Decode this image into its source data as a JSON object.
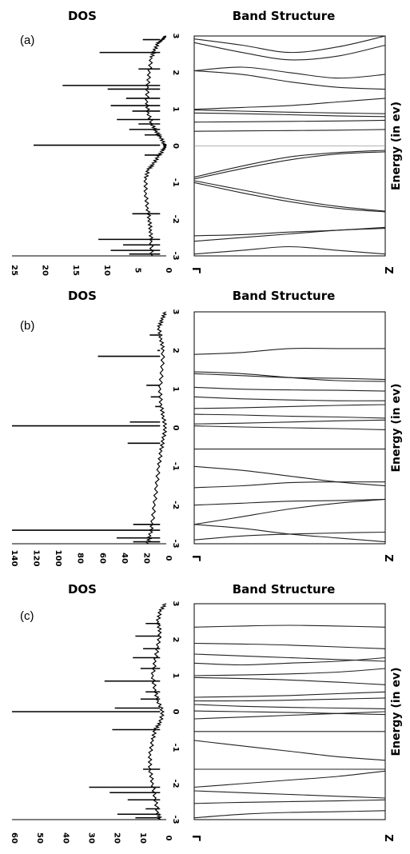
{
  "chart_data": [
    {
      "label": "(a)",
      "dos": {
        "title": "DOS",
        "type": "line",
        "xlim": [
          0,
          25
        ],
        "x_ticks": [
          "25",
          "20",
          "15",
          "10",
          "5",
          "0"
        ],
        "x_tick_values": [
          25,
          20,
          15,
          10,
          5,
          0
        ],
        "ylim": [
          -3,
          3
        ],
        "baseline": [
          [
            0,
            3
          ],
          [
            0.5,
            2.9
          ],
          [
            1.2,
            2.8
          ],
          [
            1.8,
            2.6
          ],
          [
            2.3,
            2.4
          ],
          [
            2.6,
            2.0
          ],
          [
            2.9,
            1.6
          ],
          [
            3.0,
            1.2
          ],
          [
            2.8,
            0.9
          ],
          [
            2.2,
            0.6
          ],
          [
            1.5,
            0.4
          ],
          [
            0.8,
            0.25
          ],
          [
            0.2,
            0.05
          ],
          [
            0,
            0
          ],
          [
            0.4,
            -0.12
          ],
          [
            1.2,
            -0.3
          ],
          [
            2.0,
            -0.5
          ],
          [
            2.8,
            -0.65
          ],
          [
            3.2,
            -0.9
          ],
          [
            3.2,
            -1.3
          ],
          [
            2.9,
            -1.7
          ],
          [
            2.6,
            -2.0
          ],
          [
            2.4,
            -2.3
          ],
          [
            2.3,
            -2.6
          ],
          [
            2.2,
            -3.0
          ]
        ],
        "peaks": [
          [
            2.9,
            3.8
          ],
          [
            2.55,
            10.8
          ],
          [
            2.1,
            4.5
          ],
          [
            1.65,
            16.8
          ],
          [
            1.55,
            9.5
          ],
          [
            1.3,
            6.5
          ],
          [
            1.1,
            9.0
          ],
          [
            0.95,
            5.5
          ],
          [
            0.72,
            8.0
          ],
          [
            0.6,
            4.5
          ],
          [
            0.45,
            6.0
          ],
          [
            0.3,
            3.5
          ],
          [
            0.02,
            21.5
          ],
          [
            -0.25,
            3.5
          ],
          [
            -1.85,
            5.5
          ],
          [
            -2.55,
            11.0
          ],
          [
            -2.7,
            7.0
          ],
          [
            -2.85,
            9.0
          ],
          [
            -2.95,
            6.0
          ]
        ]
      },
      "bands": {
        "title": "Band Structure",
        "ylabel": "Energy (in ev)",
        "y_ticks": [
          "3",
          "2",
          "1",
          "0",
          "-1",
          "-2",
          "-3"
        ],
        "ylim": [
          -3,
          3
        ],
        "k_labels": [
          "Γ",
          "Z"
        ],
        "lines": [
          [
            2.92,
            2.75,
            2.55,
            2.7,
            3.0
          ],
          [
            2.82,
            2.55,
            2.35,
            2.45,
            2.75
          ],
          [
            2.05,
            1.95,
            1.75,
            1.6,
            1.55
          ],
          [
            2.05,
            2.15,
            2.0,
            1.85,
            1.95
          ],
          [
            0.98,
            0.95,
            0.92,
            0.9,
            0.88
          ],
          [
            0.9,
            0.88,
            0.85,
            0.82,
            0.8
          ],
          [
            0.65,
            0.66,
            0.67,
            0.68,
            0.7
          ],
          [
            0.4,
            0.41,
            0.42,
            0.43,
            0.45
          ],
          [
            1.0,
            1.05,
            1.1,
            1.2,
            1.3
          ],
          [
            -0.85,
            -0.55,
            -0.3,
            -0.18,
            -0.12
          ],
          [
            -0.9,
            -0.62,
            -0.38,
            -0.22,
            -0.16
          ],
          [
            -0.95,
            -1.2,
            -1.45,
            -1.65,
            -1.78
          ],
          [
            -1.0,
            -1.28,
            -1.52,
            -1.7,
            -1.8
          ],
          [
            -2.45,
            -2.42,
            -2.35,
            -2.3,
            -2.22
          ],
          [
            -2.6,
            -2.5,
            -2.4,
            -2.3,
            -2.25
          ],
          [
            -2.95,
            -2.85,
            -2.75,
            -2.85,
            -2.95
          ]
        ]
      }
    },
    {
      "label": "(b)",
      "dos": {
        "title": "DOS",
        "type": "line",
        "xlim": [
          0,
          140
        ],
        "x_ticks": [
          "140",
          "120",
          "100",
          "80",
          "60",
          "40",
          "20",
          "0"
        ],
        "x_tick_values": [
          140,
          120,
          100,
          80,
          60,
          40,
          20,
          0
        ],
        "ylim": [
          -3,
          3
        ],
        "baseline": [
          [
            0,
            3
          ],
          [
            3,
            2.8
          ],
          [
            6,
            2.6
          ],
          [
            4,
            2.3
          ],
          [
            2,
            2.0
          ],
          [
            3,
            1.5
          ],
          [
            5,
            1.0
          ],
          [
            4,
            0.6
          ],
          [
            2,
            0.3
          ],
          [
            0,
            0
          ],
          [
            2,
            -0.3
          ],
          [
            4,
            -0.6
          ],
          [
            6,
            -1.0
          ],
          [
            8,
            -1.5
          ],
          [
            10,
            -2.0
          ],
          [
            12,
            -2.5
          ],
          [
            14,
            -2.8
          ],
          [
            16,
            -3.0
          ]
        ],
        "peaks": [
          [
            2.4,
            15
          ],
          [
            2.0,
            8
          ],
          [
            1.85,
            62
          ],
          [
            1.1,
            18
          ],
          [
            0.8,
            14
          ],
          [
            0.55,
            10
          ],
          [
            0.15,
            33
          ],
          [
            0.05,
            140
          ],
          [
            -0.4,
            35
          ],
          [
            -2.5,
            30
          ],
          [
            -2.65,
            140
          ],
          [
            -2.85,
            45
          ],
          [
            -2.95,
            30
          ]
        ]
      },
      "bands": {
        "title": "Band Structure",
        "ylabel": "Energy (in ev)",
        "y_ticks": [
          "3",
          "2",
          "1",
          "0",
          "-1",
          "-2",
          "-3"
        ],
        "ylim": [
          -3,
          3
        ],
        "k_labels": [
          "Γ",
          "Z"
        ],
        "lines": [
          [
            1.9,
            1.95,
            2.05,
            2.05,
            2.05
          ],
          [
            1.45,
            1.4,
            1.3,
            1.22,
            1.2
          ],
          [
            1.4,
            1.35,
            1.3,
            1.28,
            1.25
          ],
          [
            1.05,
            1.0,
            0.98,
            0.97,
            0.95
          ],
          [
            0.8,
            0.75,
            0.72,
            0.7,
            0.7
          ],
          [
            0.5,
            0.52,
            0.55,
            0.58,
            0.6
          ],
          [
            0.35,
            0.33,
            0.3,
            0.28,
            0.25
          ],
          [
            0.1,
            0.12,
            0.15,
            0.18,
            0.2
          ],
          [
            0.05,
            0.02,
            0.0,
            -0.02,
            -0.05
          ],
          [
            -0.55,
            -0.55,
            -0.55,
            -0.55,
            -0.55
          ],
          [
            -1.0,
            -1.1,
            -1.25,
            -1.4,
            -1.5
          ],
          [
            -1.55,
            -1.5,
            -1.42,
            -1.4,
            -1.4
          ],
          [
            -2.0,
            -1.95,
            -1.9,
            -1.88,
            -1.85
          ],
          [
            -2.5,
            -2.3,
            -2.1,
            -1.95,
            -1.85
          ],
          [
            -2.5,
            -2.6,
            -2.75,
            -2.85,
            -2.95
          ],
          [
            -2.9,
            -2.8,
            -2.75,
            -2.72,
            -2.7
          ]
        ]
      }
    },
    {
      "label": "(c)",
      "dos": {
        "title": "DOS",
        "type": "line",
        "xlim": [
          0,
          60
        ],
        "x_ticks": [
          "60",
          "50",
          "40",
          "30",
          "20",
          "10",
          "0"
        ],
        "x_tick_values": [
          60,
          50,
          40,
          30,
          20,
          10,
          0
        ],
        "ylim": [
          -3,
          3
        ],
        "baseline": [
          [
            0,
            3
          ],
          [
            2,
            2.8
          ],
          [
            3,
            2.5
          ],
          [
            2,
            2.2
          ],
          [
            3,
            1.8
          ],
          [
            4,
            1.4
          ],
          [
            5,
            1.0
          ],
          [
            4,
            0.6
          ],
          [
            3,
            0.3
          ],
          [
            1,
            0
          ],
          [
            2,
            -0.3
          ],
          [
            4,
            -0.5
          ],
          [
            5,
            -0.8
          ],
          [
            6,
            -1.2
          ],
          [
            6,
            -1.6
          ],
          [
            5,
            -2.0
          ],
          [
            4,
            -2.4
          ],
          [
            3,
            -2.8
          ],
          [
            2,
            -3.0
          ]
        ],
        "peaks": [
          [
            2.45,
            8
          ],
          [
            2.1,
            12
          ],
          [
            1.75,
            9
          ],
          [
            1.5,
            13
          ],
          [
            1.2,
            10
          ],
          [
            0.85,
            24
          ],
          [
            0.55,
            8
          ],
          [
            0.35,
            10
          ],
          [
            0.1,
            20
          ],
          [
            0.0,
            60
          ],
          [
            -0.5,
            21
          ],
          [
            -1.6,
            9
          ],
          [
            -2.1,
            30
          ],
          [
            -2.25,
            22
          ],
          [
            -2.45,
            15
          ],
          [
            -2.7,
            8
          ],
          [
            -2.85,
            19
          ],
          [
            -2.95,
            12
          ]
        ]
      },
      "bands": {
        "title": "Band Structure",
        "ylabel": "Energy (in ev)",
        "y_ticks": [
          "3",
          "2",
          "1",
          "0",
          "-1",
          "-2",
          "-3"
        ],
        "ylim": [
          -3,
          3
        ],
        "k_labels": [
          "Γ",
          "Z"
        ],
        "lines": [
          [
            2.35,
            2.38,
            2.4,
            2.38,
            2.35
          ],
          [
            1.9,
            1.88,
            1.85,
            1.8,
            1.75
          ],
          [
            1.6,
            1.55,
            1.5,
            1.45,
            1.4
          ],
          [
            1.35,
            1.3,
            1.35,
            1.4,
            1.5
          ],
          [
            1.0,
            1.02,
            1.05,
            1.1,
            1.2
          ],
          [
            0.95,
            0.92,
            0.88,
            0.82,
            0.75
          ],
          [
            0.4,
            0.42,
            0.45,
            0.5,
            0.55
          ],
          [
            0.3,
            0.3,
            0.32,
            0.35,
            0.38
          ],
          [
            0.2,
            0.15,
            0.12,
            0.1,
            0.08
          ],
          [
            0.02,
            0.0,
            -0.02,
            -0.05,
            -0.08
          ],
          [
            -0.2,
            -0.15,
            -0.1,
            -0.05,
            0.0
          ],
          [
            -0.55,
            -0.55,
            -0.55,
            -0.55,
            -0.55
          ],
          [
            -0.8,
            -0.95,
            -1.1,
            -1.25,
            -1.35
          ],
          [
            -1.6,
            -1.6,
            -1.6,
            -1.6,
            -1.6
          ],
          [
            -2.1,
            -2.0,
            -1.9,
            -1.8,
            -1.65
          ],
          [
            -2.2,
            -2.25,
            -2.3,
            -2.35,
            -2.4
          ],
          [
            -2.55,
            -2.52,
            -2.5,
            -2.48,
            -2.45
          ],
          [
            -2.95,
            -2.85,
            -2.8,
            -2.78,
            -2.75
          ]
        ]
      }
    }
  ]
}
